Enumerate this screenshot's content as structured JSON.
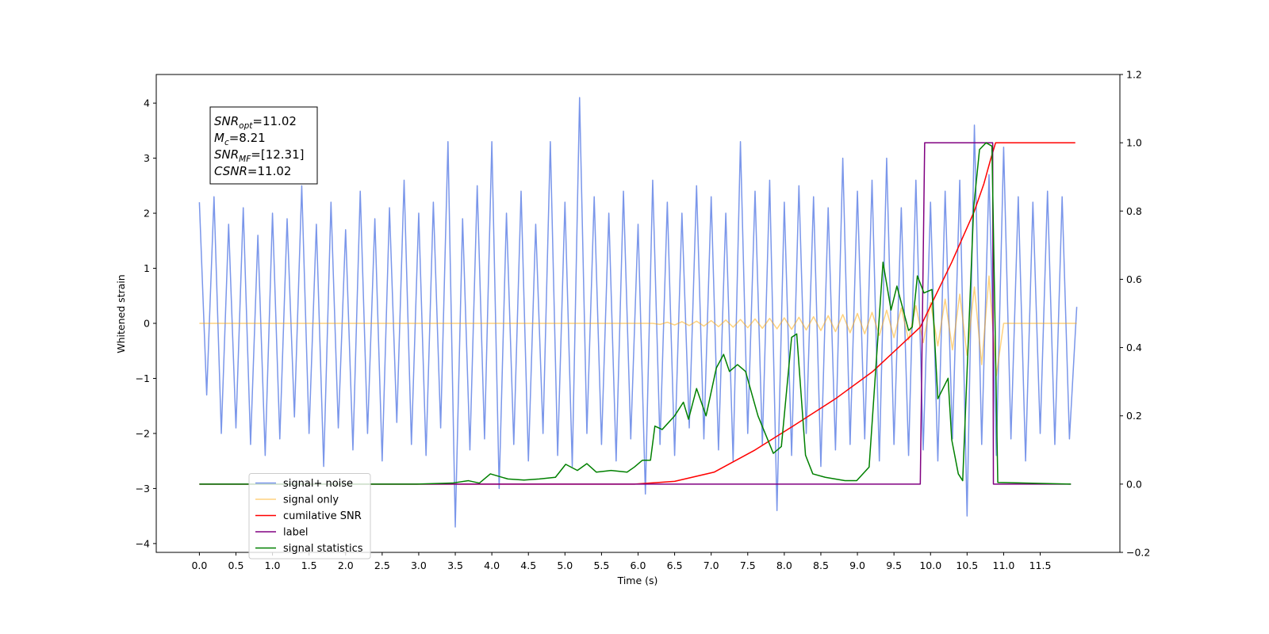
{
  "chart_data": {
    "type": "line",
    "xlabel": "Time (s)",
    "ylabel": "Whitened strain",
    "xlim": [
      -0.59,
      12.59
    ],
    "ylim": [
      -4.16,
      4.52
    ],
    "y2lim": [
      -0.2,
      1.2
    ],
    "xticks": [
      {
        "value": 0,
        "label": "0.0"
      },
      {
        "value": 0.5,
        "label": "0.5"
      },
      {
        "value": 1,
        "label": "1.0"
      },
      {
        "value": 1.5,
        "label": "1.5"
      },
      {
        "value": 2,
        "label": "2.0"
      },
      {
        "value": 2.5,
        "label": "2.5"
      },
      {
        "value": 3,
        "label": "3.0"
      },
      {
        "value": 3.5,
        "label": "3.5"
      },
      {
        "value": 4,
        "label": "4.0"
      },
      {
        "value": 4.5,
        "label": "4.5"
      },
      {
        "value": 5,
        "label": "5.0"
      },
      {
        "value": 5.5,
        "label": "5.5"
      },
      {
        "value": 6,
        "label": "6.0"
      },
      {
        "value": 6.5,
        "label": "6.5"
      },
      {
        "value": 7,
        "label": "7.0"
      },
      {
        "value": 7.5,
        "label": "7.5"
      },
      {
        "value": 8,
        "label": "8.0"
      },
      {
        "value": 8.5,
        "label": "8.5"
      },
      {
        "value": 9,
        "label": "9.0"
      },
      {
        "value": 9.5,
        "label": "9.5"
      },
      {
        "value": 10,
        "label": "10.0"
      },
      {
        "value": 10.5,
        "label": "10.5"
      },
      {
        "value": 11,
        "label": "11.0"
      },
      {
        "value": 11.5,
        "label": "11.5"
      }
    ],
    "yticks": [
      {
        "value": -4,
        "label": "−4"
      },
      {
        "value": -3,
        "label": "−3"
      },
      {
        "value": -2,
        "label": "−2"
      },
      {
        "value": -1,
        "label": "−1"
      },
      0,
      1,
      2,
      3,
      4
    ],
    "y2ticks": [
      {
        "value": -0.2,
        "label": "−0.2"
      },
      {
        "value": 0,
        "label": "0.0"
      },
      {
        "value": 0.2,
        "label": "0.2"
      },
      {
        "value": 0.4,
        "label": "0.4"
      },
      {
        "value": 0.6,
        "label": "0.6"
      },
      {
        "value": 0.8,
        "label": "0.8"
      },
      {
        "value": 1,
        "label": "1.0"
      },
      {
        "value": 1.2,
        "label": "1.2"
      }
    ],
    "legend": "lower left",
    "annotation": [
      {
        "symbol": "SNR",
        "subscript": "opt",
        "text": "=11.02"
      },
      {
        "symbol": "M",
        "subscript": "c",
        "text": "=8.21"
      },
      {
        "symbol": "SNR",
        "subscript": "MF",
        "text": "=[12.31]"
      },
      {
        "symbol": "CSNR",
        "text": "=11.02"
      }
    ],
    "x": [
      0,
      0.1,
      0.2,
      0.3,
      0.4,
      0.5,
      0.6,
      0.7,
      0.8,
      0.9,
      1,
      1.1,
      1.2,
      1.3,
      1.4,
      1.5,
      1.6,
      1.7,
      1.8,
      1.9,
      2,
      2.1,
      2.2,
      2.3,
      2.4,
      2.5,
      2.6,
      2.7,
      2.8,
      2.9,
      3,
      3.1,
      3.2,
      3.3,
      3.4,
      3.5,
      3.6,
      3.7,
      3.8,
      3.9,
      4,
      4.1,
      4.2,
      4.3,
      4.4,
      4.5,
      4.6,
      4.7,
      4.8,
      4.9,
      5,
      5.1,
      5.2,
      5.3,
      5.4,
      5.5,
      5.6,
      5.7,
      5.8,
      5.9,
      6,
      6.1,
      6.2,
      6.3,
      6.4,
      6.5,
      6.6,
      6.7,
      6.8,
      6.9,
      7,
      7.1,
      7.2,
      7.3,
      7.4,
      7.5,
      7.6,
      7.7,
      7.8,
      7.9,
      8,
      8.1,
      8.2,
      8.3,
      8.4,
      8.5,
      8.6,
      8.7,
      8.8,
      8.9,
      9,
      9.1,
      9.2,
      9.3,
      9.4,
      9.5,
      9.6,
      9.7,
      9.8,
      9.9,
      10,
      10.1,
      10.2,
      10.3,
      10.4,
      10.5,
      10.6,
      10.7,
      10.8,
      10.9,
      11,
      11.1,
      11.2,
      11.3,
      11.4,
      11.5,
      11.6,
      11.7,
      11.8,
      11.9,
      12
    ],
    "series": [
      {
        "name": "signal+ noise",
        "color": "#4169e1",
        "alpha": 0.7,
        "values": [
          2.2,
          -1.3,
          2.3,
          -2.0,
          1.8,
          -1.9,
          2.1,
          -2.2,
          1.6,
          -2.4,
          2.0,
          -2.1,
          1.9,
          -1.7,
          2.5,
          -2.0,
          1.8,
          -2.6,
          2.2,
          -1.9,
          1.7,
          -2.3,
          2.4,
          -2.0,
          1.9,
          -2.5,
          2.1,
          -1.8,
          2.6,
          -2.2,
          2.0,
          -2.4,
          2.2,
          -1.9,
          3.3,
          -3.7,
          1.9,
          -2.3,
          2.5,
          -2.1,
          3.3,
          -3.0,
          2.0,
          -2.2,
          2.4,
          -2.5,
          1.8,
          -2.0,
          3.3,
          -2.4,
          2.2,
          -2.6,
          4.1,
          -2.0,
          2.3,
          -2.2,
          2.0,
          -2.5,
          2.4,
          -2.1,
          1.8,
          -3.1,
          2.6,
          -2.2,
          2.2,
          -2.4,
          2.0,
          -1.9,
          2.5,
          -2.1,
          2.3,
          -2.3,
          2.0,
          -2.5,
          3.3,
          -2.0,
          2.4,
          -2.2,
          2.6,
          -3.4,
          2.2,
          -2.4,
          2.5,
          -2.0,
          2.3,
          -2.6,
          2.1,
          -2.3,
          3.0,
          -2.2,
          2.4,
          -2.1,
          2.6,
          -2.5,
          3.0,
          -2.2,
          2.1,
          -2.4,
          2.6,
          -2.3,
          2.2,
          -2.5,
          2.4,
          -2.1,
          2.6,
          -3.5,
          3.6,
          -2.2,
          2.7,
          -2.4,
          3.2,
          -2.1,
          2.3,
          -2.5,
          2.2,
          -2.0,
          2.4,
          -2.2,
          2.3,
          -2.1,
          0.3
        ]
      },
      {
        "name": "signal only",
        "color": "#ffa500",
        "alpha": 0.5,
        "values": [
          0,
          0,
          0,
          0,
          0,
          0,
          0,
          0,
          0,
          0,
          0,
          0,
          0,
          0,
          0,
          0,
          0,
          0,
          0,
          0,
          0,
          0,
          0,
          0,
          0,
          0,
          0,
          0,
          0,
          0,
          0,
          0,
          0,
          0,
          0,
          0,
          0,
          0,
          0,
          0,
          0,
          0,
          0,
          0,
          0,
          0,
          0,
          0,
          0,
          0,
          0,
          0,
          0,
          0,
          0,
          0,
          0,
          0,
          0,
          0,
          0,
          0,
          0,
          -0.02,
          0.02,
          -0.03,
          0.03,
          -0.04,
          0.04,
          -0.05,
          0.05,
          -0.06,
          0.06,
          -0.07,
          0.07,
          -0.08,
          0.08,
          -0.09,
          0.09,
          -0.1,
          0.1,
          -0.11,
          0.11,
          -0.12,
          0.12,
          -0.13,
          0.14,
          -0.15,
          0.16,
          -0.17,
          0.18,
          -0.19,
          0.2,
          -0.22,
          0.24,
          -0.26,
          0.28,
          -0.3,
          0.32,
          -0.35,
          0.38,
          -0.41,
          0.44,
          -0.48,
          0.53,
          -0.58,
          0.66,
          -0.75,
          0.86,
          -0.95,
          0,
          0,
          0,
          0,
          0,
          0,
          0,
          0,
          0,
          0,
          0
        ]
      },
      {
        "name": "cumilative SNR",
        "color": "#ff0000",
        "axis": "y2",
        "x": [
          0,
          5.95,
          6.5,
          7.04,
          7.6,
          8.12,
          8.7,
          9.21,
          9.86,
          10.29,
          10.6,
          10.73,
          10.82,
          10.89,
          11.98
        ],
        "values": [
          0,
          0,
          0.008,
          0.035,
          0.1,
          0.17,
          0.25,
          0.33,
          0.46,
          0.65,
          0.8,
          0.88,
          0.95,
          1,
          1
        ]
      },
      {
        "name": "label",
        "color": "#800080",
        "axis": "y2",
        "x": [
          0,
          9.86,
          9.92,
          10.85,
          10.86,
          11.92
        ],
        "values": [
          0,
          0,
          1,
          1,
          0,
          0
        ]
      },
      {
        "name": "signal statistics",
        "color": "#008000",
        "axis": "y2",
        "x": [
          0,
          2.97,
          3.46,
          3.68,
          3.83,
          3.98,
          4.22,
          4.44,
          4.65,
          4.87,
          5.01,
          5.17,
          5.3,
          5.43,
          5.63,
          5.85,
          5.95,
          6.06,
          6.17,
          6.23,
          6.33,
          6.5,
          6.62,
          6.69,
          6.8,
          6.93,
          7.07,
          7.17,
          7.25,
          7.36,
          7.47,
          7.64,
          7.85,
          7.96,
          8.1,
          8.17,
          8.29,
          8.39,
          8.56,
          8.83,
          8.99,
          9.16,
          9.35,
          9.46,
          9.54,
          9.7,
          9.75,
          9.82,
          9.91,
          10.02,
          10.1,
          10.24,
          10.29,
          10.38,
          10.44,
          10.59,
          10.67,
          10.76,
          10.84,
          10.92,
          11.92
        ],
        "values": [
          0,
          0,
          0.003,
          0.01,
          0.003,
          0.03,
          0.015,
          0.012,
          0.015,
          0.02,
          0.058,
          0.04,
          0.06,
          0.035,
          0.04,
          0.035,
          0.05,
          0.07,
          0.07,
          0.17,
          0.16,
          0.2,
          0.24,
          0.19,
          0.28,
          0.2,
          0.34,
          0.38,
          0.33,
          0.35,
          0.33,
          0.2,
          0.09,
          0.11,
          0.43,
          0.44,
          0.085,
          0.03,
          0.02,
          0.01,
          0.01,
          0.05,
          0.65,
          0.51,
          0.58,
          0.45,
          0.46,
          0.61,
          0.56,
          0.57,
          0.25,
          0.31,
          0.13,
          0.03,
          0.01,
          0.81,
          0.98,
          1.0,
          0.99,
          0.005,
          0
        ]
      }
    ]
  }
}
